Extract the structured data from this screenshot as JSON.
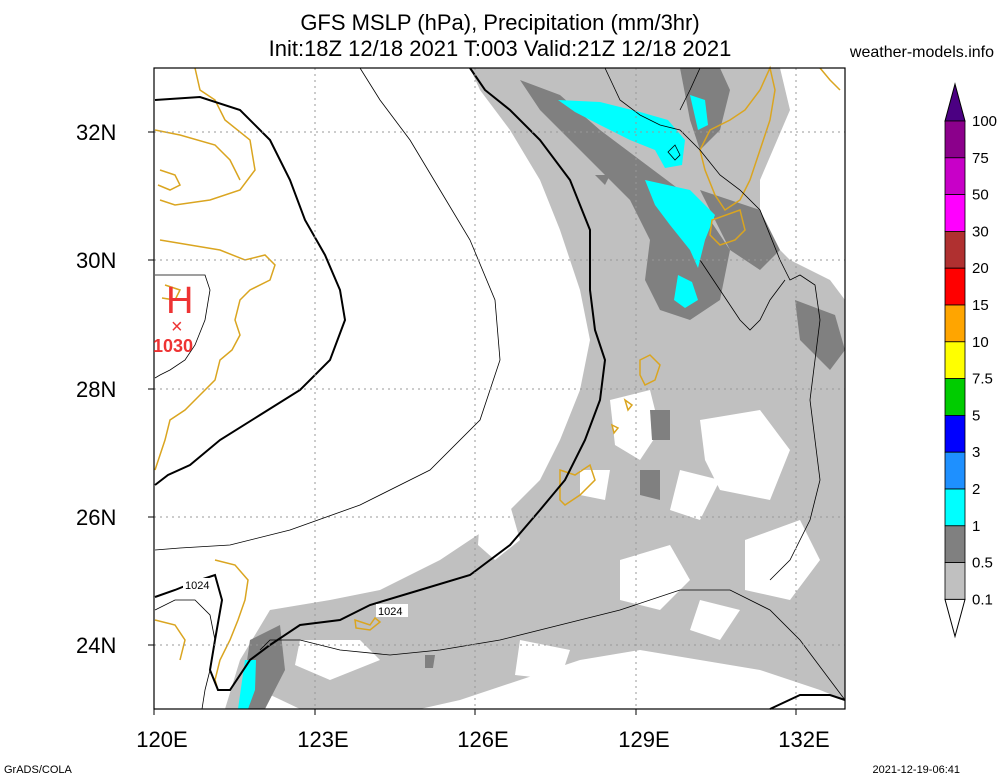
{
  "header": {
    "title_line1": "GFS MSLP (hPa), Precipitation (mm/3hr)",
    "title_line2": "Init:18Z 12/18 2021 T:003 Valid:21Z 12/18 2021",
    "site": "weather-models.info"
  },
  "axes": {
    "lat_labels": [
      "32N",
      "30N",
      "28N",
      "26N",
      "24N"
    ],
    "lon_labels": [
      "120E",
      "123E",
      "126E",
      "129E",
      "132E"
    ]
  },
  "pressure_center": {
    "letter": "H",
    "value": "1030",
    "marker": "×"
  },
  "contour_labels": [
    "1024",
    "1024"
  ],
  "colorbar": {
    "labels": [
      "100",
      "75",
      "50",
      "30",
      "20",
      "15",
      "10",
      "7.5",
      "5",
      "3",
      "2",
      "1",
      "0.5",
      "0.1"
    ],
    "colors": [
      "#4b0082",
      "#8b008b",
      "#c800c8",
      "#ff00ff",
      "#b03030",
      "#ff0000",
      "#ffa500",
      "#ffff00",
      "#00cc00",
      "#0000ff",
      "#1e90ff",
      "#00ffff",
      "#808080",
      "#c0c0c0"
    ]
  },
  "colors": {
    "coast": "#daa520",
    "light_precip": "#c0c0c0",
    "mid_precip": "#808080",
    "high_precip": "#00ffff"
  },
  "footer": {
    "left": "GrADS/COLA",
    "right": "2021-12-19-06:41"
  }
}
